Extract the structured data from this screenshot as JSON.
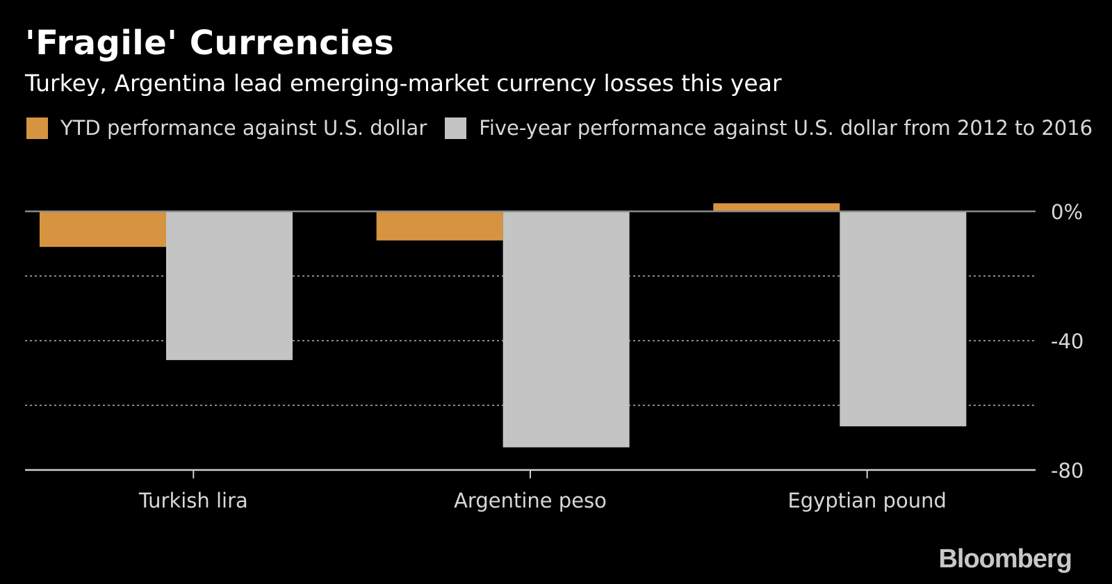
{
  "header": {
    "title": "'Fragile' Currencies",
    "subtitle": "Turkey, Argentina lead emerging-market currency losses this year"
  },
  "legend": {
    "items": [
      {
        "label": "YTD performance against U.S. dollar",
        "color": "#d79440"
      },
      {
        "label": "Five-year performance against U.S. dollar from 2012 to 2016",
        "color": "#c4c4c4"
      }
    ]
  },
  "footer": {
    "brand": "Bloomberg"
  },
  "colors": {
    "background": "#000000",
    "gridline": "#8a8a8a",
    "axis": "#d0d0d0"
  },
  "chart_data": {
    "type": "bar",
    "categories": [
      "Turkish lira",
      "Argentine peso",
      "Egyptian pound"
    ],
    "series": [
      {
        "name": "YTD performance against U.S. dollar",
        "values": [
          -11,
          -9,
          2.5
        ]
      },
      {
        "name": "Five-year performance against U.S. dollar from 2012 to 2016",
        "values": [
          -46,
          -73,
          -66.5
        ]
      }
    ],
    "ylim": [
      -80,
      0
    ],
    "yticks": [
      0,
      -40,
      -80
    ],
    "ytick_labels": [
      "0%",
      "-40",
      "-80"
    ],
    "ygrid": [
      -20,
      -40,
      -60
    ],
    "grid": true,
    "legend_position": "top-left"
  }
}
